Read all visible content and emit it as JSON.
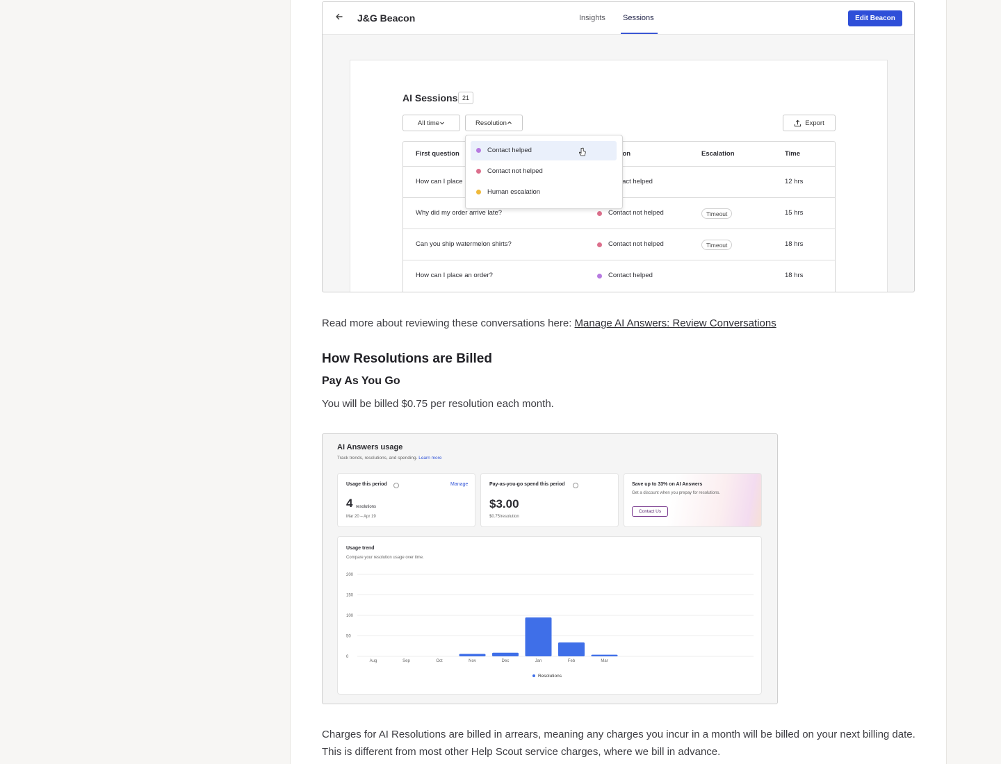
{
  "session_screenshot": {
    "title": "J&G Beacon",
    "tabs": [
      {
        "label": "Insights"
      },
      {
        "label": "Sessions"
      }
    ],
    "edit_button": "Edit Beacon",
    "heading": "AI Sessions",
    "count": "21",
    "filters": {
      "time": "All time",
      "resolution": "Resolution"
    },
    "export_label": "Export",
    "columns": [
      "First question",
      "Resolution",
      "Escalation",
      "Time"
    ],
    "rows": [
      {
        "question": "How can I place",
        "resolution": "Contact helped",
        "escalation": "",
        "time": "12 hrs"
      },
      {
        "question": "Why did my order arrive late?",
        "resolution": "Contact not helped",
        "escalation": "Timeout",
        "time": "15 hrs"
      },
      {
        "question": "Can you ship watermelon shirts?",
        "resolution": "Contact not helped",
        "escalation": "Timeout",
        "time": "18 hrs"
      },
      {
        "question": "How can I place an order?",
        "resolution": "Contact helped",
        "escalation": "",
        "time": "18 hrs"
      }
    ],
    "dropdown_options": [
      {
        "label": "Contact helped",
        "color": "#b77ae0"
      },
      {
        "label": "Contact not helped",
        "color": "#dc6f8c"
      },
      {
        "label": "Human escalation",
        "color": "#f0b93a"
      }
    ],
    "resolution_colors": {
      "Contact helped": "#b77ae0",
      "Contact not helped": "#dc6f8c"
    }
  },
  "article": {
    "read_more_prefix": "Read more about reviewing these conversations here: ",
    "read_more_link": "Manage AI Answers: Review Conversations",
    "heading": "How Resolutions are Billed",
    "subheading": "Pay As You Go",
    "billing_text": "You will be billed $0.75 per resolution each month.",
    "charges_text": "Charges for AI Resolutions are billed in arrears, meaning any charges you incur in a month will be billed on your next billing date. This is different from most other Help Scout service charges, where we bill in advance."
  },
  "usage_screenshot": {
    "title": "AI Answers usage",
    "subtitle": "Track trends, resolutions, and spending.",
    "learn_more": "Learn more",
    "usage_card": {
      "label": "Usage this period",
      "manage": "Manage",
      "value": "4",
      "unit": "resolutions",
      "range": "Mar 20 – Apr 19"
    },
    "spend_card": {
      "label": "Pay-as-you-go spend this period",
      "value": "$3.00",
      "rate": "$0.75/resolution"
    },
    "promo_card": {
      "title": "Save up to 33% on AI Answers",
      "text": "Get a discount when you prepay for resolutions.",
      "button": "Contact Us"
    },
    "trend": {
      "title": "Usage trend",
      "subtitle": "Compare your resolution usage over time."
    }
  },
  "chart_data": {
    "type": "bar",
    "categories": [
      "Aug",
      "Sep",
      "Oct",
      "Nov",
      "Dec",
      "Jan",
      "Feb",
      "Mar"
    ],
    "series": [
      {
        "name": "Resolutions",
        "values": [
          0,
          0,
          0,
          6,
          9,
          95,
          34,
          4
        ],
        "color": "#3f6fe8"
      }
    ],
    "yticks": [
      0,
      50,
      100,
      150,
      200
    ],
    "ylim": [
      0,
      200
    ],
    "grid": true,
    "legend": "bottom"
  }
}
